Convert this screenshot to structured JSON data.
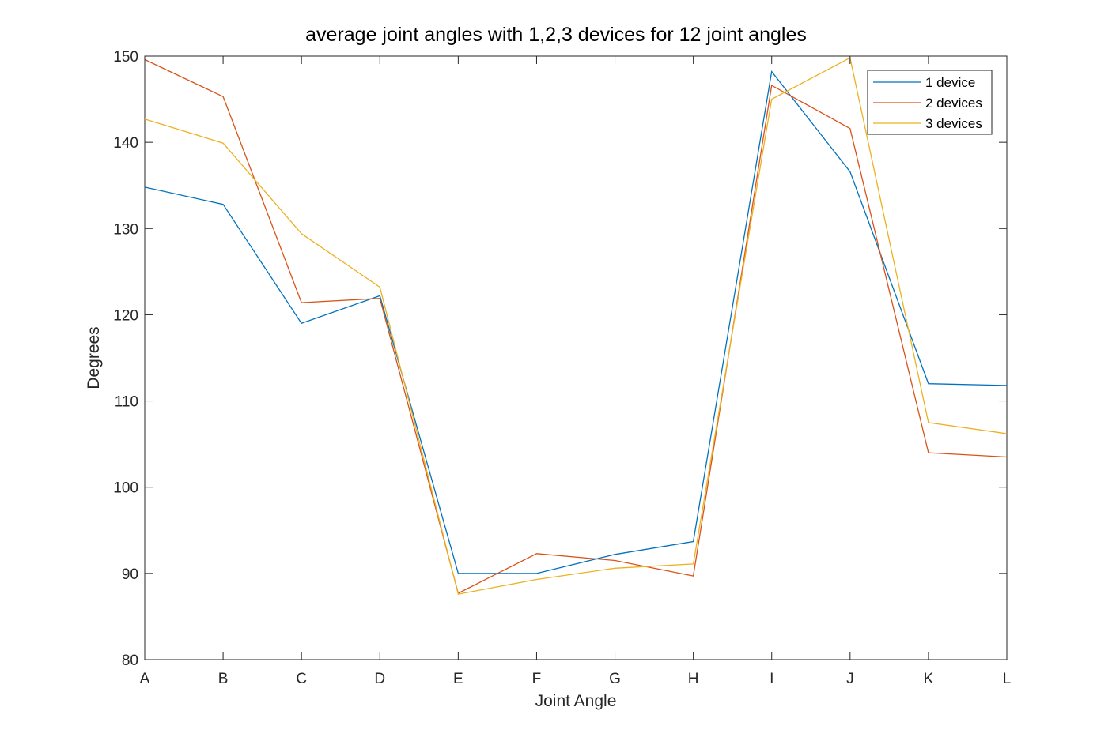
{
  "chart_data": {
    "type": "line",
    "title": "average joint angles with 1,2,3 devices for 12 joint angles",
    "xlabel": "Joint Angle",
    "ylabel": "Degrees",
    "categories": [
      "A",
      "B",
      "C",
      "D",
      "E",
      "F",
      "G",
      "H",
      "I",
      "J",
      "K",
      "L"
    ],
    "ylim": [
      80,
      150
    ],
    "yticks": [
      80,
      90,
      100,
      110,
      120,
      130,
      140,
      150
    ],
    "grid": false,
    "legend_position": "top-right",
    "series": [
      {
        "name": "1 device",
        "color": "#0072BD",
        "values": [
          134.8,
          132.8,
          119.0,
          122.2,
          90.0,
          90.0,
          92.2,
          93.7,
          148.2,
          136.6,
          112.0,
          111.8
        ]
      },
      {
        "name": "2 devices",
        "color": "#D95319",
        "values": [
          149.6,
          145.3,
          121.4,
          121.9,
          87.7,
          92.3,
          91.5,
          89.7,
          146.6,
          141.6,
          104.0,
          103.5
        ]
      },
      {
        "name": "3 devices",
        "color": "#EDB120",
        "values": [
          142.7,
          139.9,
          129.4,
          123.2,
          87.6,
          89.3,
          90.6,
          91.1,
          145.0,
          149.8,
          107.5,
          106.2
        ]
      }
    ]
  }
}
